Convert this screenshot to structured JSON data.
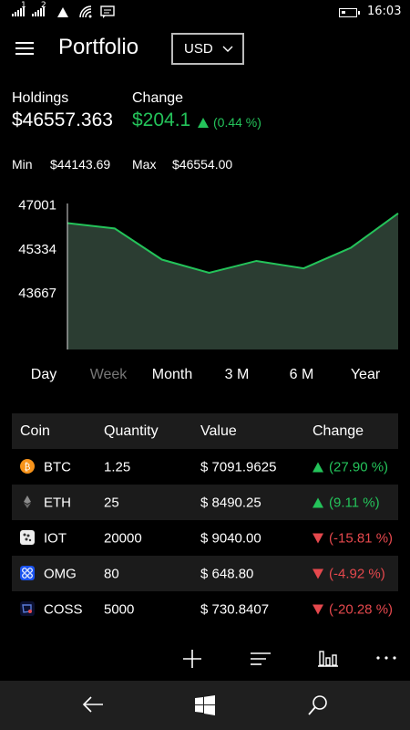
{
  "status": {
    "sim1": "1",
    "sim2": "2",
    "time": "16:03"
  },
  "header": {
    "title": "Portfolio",
    "currency": "USD"
  },
  "summary": {
    "holdings_label": "Holdings",
    "holdings_value": "$46557.363",
    "change_label": "Change",
    "change_value": "$204.1",
    "change_pct": "(0.44 %)",
    "min_label": "Min",
    "min_value": "$44143.69",
    "max_label": "Max",
    "max_value": "$46554.00"
  },
  "chart_data": {
    "type": "area",
    "y_ticks": [
      "47001",
      "45334",
      "43667"
    ],
    "ylim": [
      41500,
      47300
    ],
    "values": [
      46280,
      46080,
      44900,
      44400,
      44850,
      44570,
      45350,
      46650
    ],
    "color": "#24c35a"
  },
  "ranges": [
    "Day",
    "Week",
    "Month",
    "3 M",
    "6 M",
    "Year"
  ],
  "table": {
    "headers": [
      "Coin",
      "Quantity",
      "Value",
      "Change"
    ],
    "rows": [
      {
        "coin": "BTC",
        "qty": "1.25",
        "value": "$ 7091.9625",
        "change": "(27.90 %)",
        "dir": "up"
      },
      {
        "coin": "ETH",
        "qty": "25",
        "value": "$ 8490.25",
        "change": "(9.11 %)",
        "dir": "up"
      },
      {
        "coin": "IOT",
        "qty": "20000",
        "value": "$ 9040.00",
        "change": "(-15.81 %)",
        "dir": "down"
      },
      {
        "coin": "OMG",
        "qty": "80",
        "value": "$ 648.80",
        "change": "(-4.92 %)",
        "dir": "down"
      },
      {
        "coin": "COSS",
        "qty": "5000",
        "value": "$ 730.8407",
        "change": "(-20.28 %)",
        "dir": "down"
      }
    ]
  },
  "appbar": {
    "icons": [
      "add-icon",
      "sort-icon",
      "bar-chart-icon",
      "more-icon"
    ]
  },
  "nav": {
    "icons": [
      "back-icon",
      "windows-icon",
      "search-icon"
    ]
  },
  "colors": {
    "up": "#24c35a",
    "down": "#e5484d",
    "bg": "#000000"
  }
}
